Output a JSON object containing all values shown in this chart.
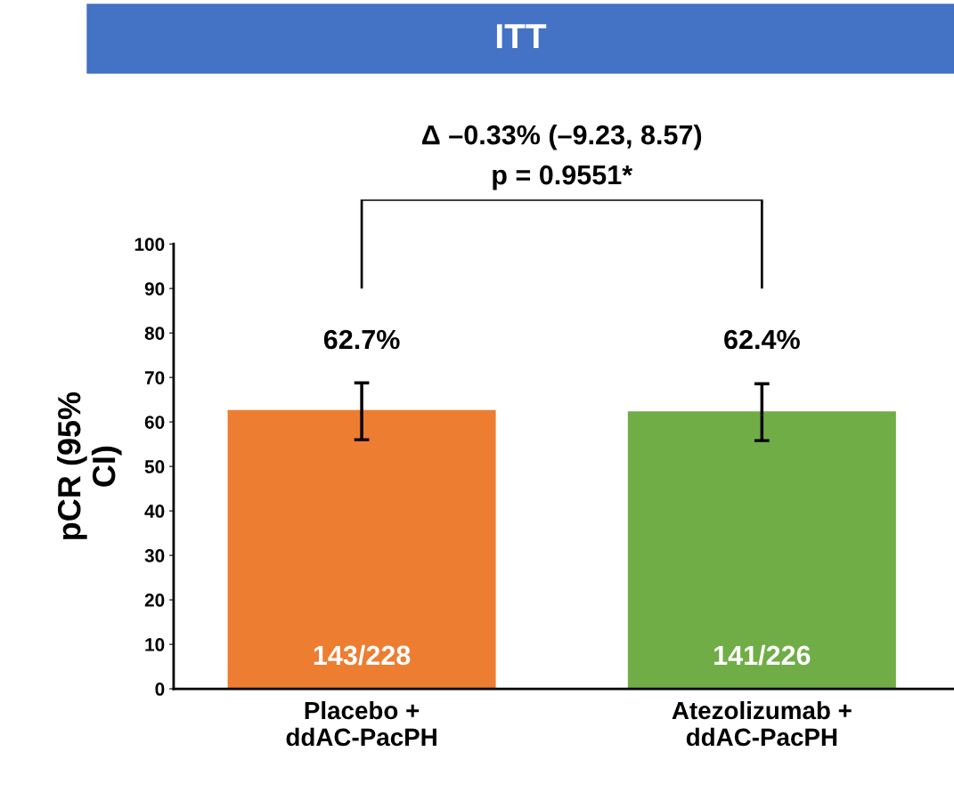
{
  "chart_data": {
    "type": "bar",
    "title": "ITT",
    "ylabel": "pCR (95%\nCI)",
    "categories": [
      "Placebo +\nddAC-PacPH",
      "Atezolizumab +\nddAC-PacPH"
    ],
    "values": [
      62.7,
      62.4
    ],
    "colors": [
      "#ed7d31",
      "#70ad47"
    ],
    "errors": [
      [
        56.0,
        68.8
      ],
      [
        55.8,
        68.6
      ]
    ],
    "value_labels": [
      "62.7%",
      "62.4%"
    ],
    "ylim": [
      0,
      100
    ],
    "yticks": [
      0,
      10,
      20,
      30,
      40,
      50,
      60,
      70,
      80,
      90,
      100
    ],
    "grid": false,
    "legend": false,
    "annotations": [
      "Δ –0.33% (–9.23, 8.57)",
      "p = 0.9551*",
      "143/228",
      "141/226"
    ]
  }
}
